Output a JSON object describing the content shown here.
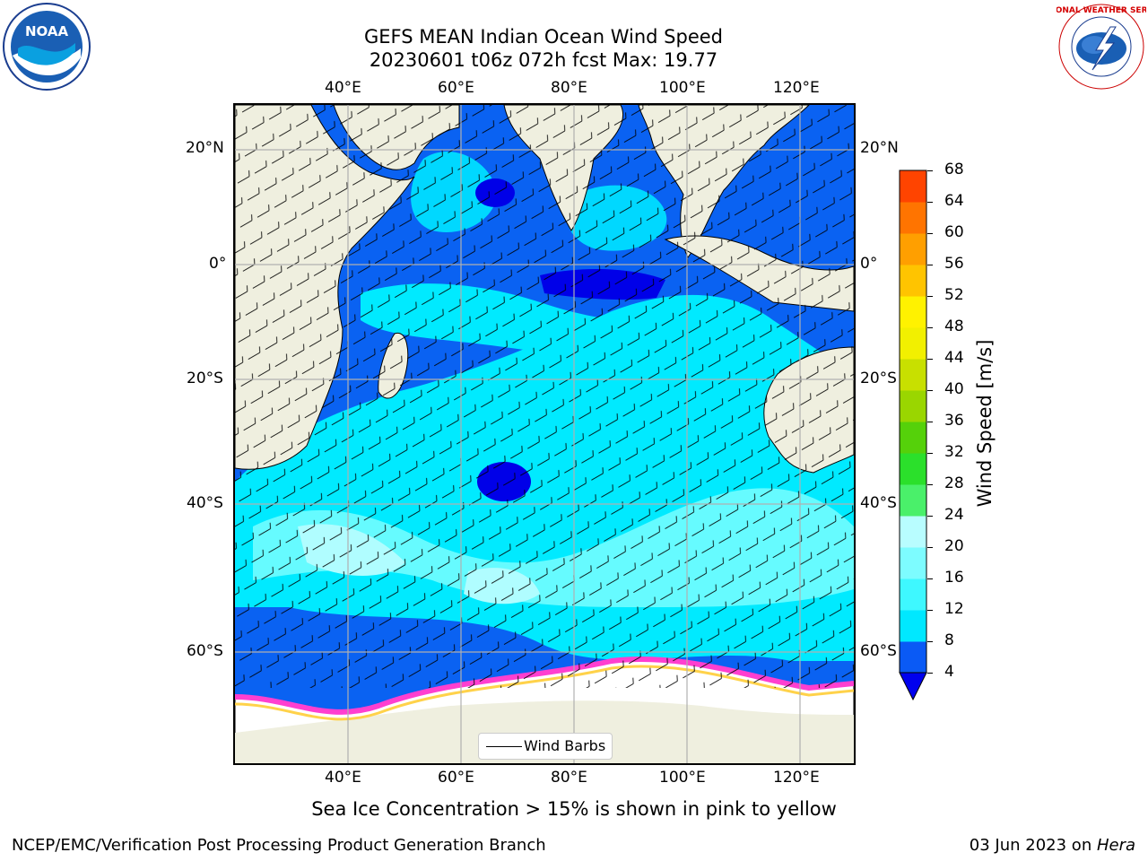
{
  "title": {
    "line1": "GEFS MEAN Indian Ocean Wind Speed",
    "line2": "20230601 t06z 072h fcst   Max: 19.77"
  },
  "axes": {
    "lon_ticks": [
      "40°E",
      "60°E",
      "80°E",
      "100°E",
      "120°E"
    ],
    "lat_ticks": [
      "20°N",
      "0°",
      "20°S",
      "40°S",
      "60°S"
    ]
  },
  "colorbar": {
    "label": "Wind Speed [m/s]",
    "ticks": [
      "4",
      "8",
      "12",
      "16",
      "20",
      "24",
      "28",
      "32",
      "36",
      "40",
      "44",
      "48",
      "52",
      "56",
      "60",
      "64",
      "68"
    ],
    "colors": [
      "#0a4df5",
      "#00d4ff",
      "#1ff0ff",
      "#56f7ff",
      "#a3fbff",
      "#3ef55a",
      "#00e000",
      "#66d600",
      "#a6d600",
      "#cbe600",
      "#f0ee00",
      "#ffea00",
      "#ffc800",
      "#ffa000",
      "#ff7800",
      "#ff4600",
      "#ff1a00"
    ],
    "colors_fixed": [
      "#0a5af5",
      "#00e8ff",
      "#3ef8ff",
      "#7dfcff",
      "#b8fdff",
      "#4af06a",
      "#2be02b",
      "#55d10a",
      "#9ad600",
      "#c8e000",
      "#f2f000",
      "#fff200",
      "#ffc400",
      "#ff9f00",
      "#ff7400",
      "#ff4400",
      "#ff1600"
    ],
    "under_color": "#0000ee"
  },
  "legend": {
    "label": "Wind Barbs"
  },
  "subtitle": "Sea Ice Concentration > 15% is shown in pink to yellow",
  "footer": {
    "left": "NCEP/EMC/Verification Post Processing Product Generation Branch",
    "right_prefix": "03 Jun 2023 on ",
    "right_machine": "Hera"
  },
  "logos": {
    "left_text": "NOAA",
    "right_text": "NATIONAL WEATHER SERVICE"
  }
}
